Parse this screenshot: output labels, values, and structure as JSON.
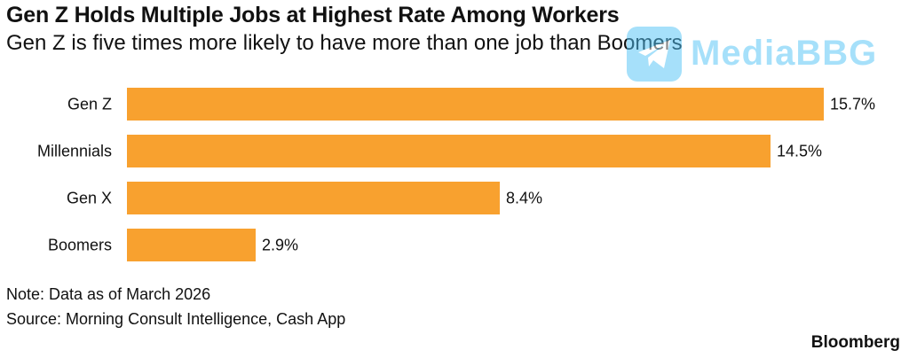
{
  "chart_data": {
    "type": "bar",
    "orientation": "horizontal",
    "title": "Gen Z Holds Multiple Jobs at Highest Rate Among Workers",
    "subtitle": "Gen Z is five times more likely to have more than one job than Boomers",
    "categories": [
      "Gen Z",
      "Millennials",
      "Gen X",
      "Boomers"
    ],
    "values": [
      15.7,
      14.5,
      8.4,
      2.9
    ],
    "data_labels": [
      "15.7%",
      "14.5%",
      "8.4%",
      "2.9%"
    ],
    "unit": "%",
    "xlim": [
      0,
      15.7
    ],
    "grid": false,
    "bar_color": "#f8a12f",
    "xlabel": "",
    "ylabel": ""
  },
  "footer": {
    "note": "Note: Data as of March 2026",
    "source": "Source: Morning Consult Intelligence, Cash App",
    "brand": "Bloomberg"
  },
  "watermark": {
    "text": "MediaBBG",
    "icon": "telegram-plane-icon",
    "color": "#4fc3f7"
  }
}
